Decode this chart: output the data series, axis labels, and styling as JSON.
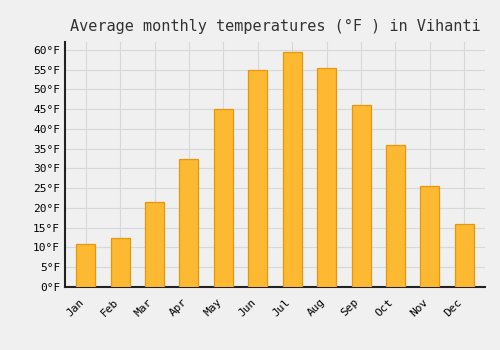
{
  "title": "Average monthly temperatures (°F ) in Vihanti",
  "months": [
    "Jan",
    "Feb",
    "Mar",
    "Apr",
    "May",
    "Jun",
    "Jul",
    "Aug",
    "Sep",
    "Oct",
    "Nov",
    "Dec"
  ],
  "values": [
    11,
    12.5,
    21.5,
    32.5,
    45,
    55,
    59.5,
    55.5,
    46,
    36,
    25.5,
    16
  ],
  "bar_color": "#FDB931",
  "bar_edge_color": "#E8960A",
  "ylim": [
    0,
    62
  ],
  "yticks": [
    0,
    5,
    10,
    15,
    20,
    25,
    30,
    35,
    40,
    45,
    50,
    55,
    60
  ],
  "ylabel_suffix": "°F",
  "background_color": "#f0f0f0",
  "plot_bg_color": "#f0f0f0",
  "grid_color": "#d8d8d8",
  "spine_color": "#222222",
  "title_fontsize": 11,
  "tick_fontsize": 8,
  "font_family": "monospace"
}
